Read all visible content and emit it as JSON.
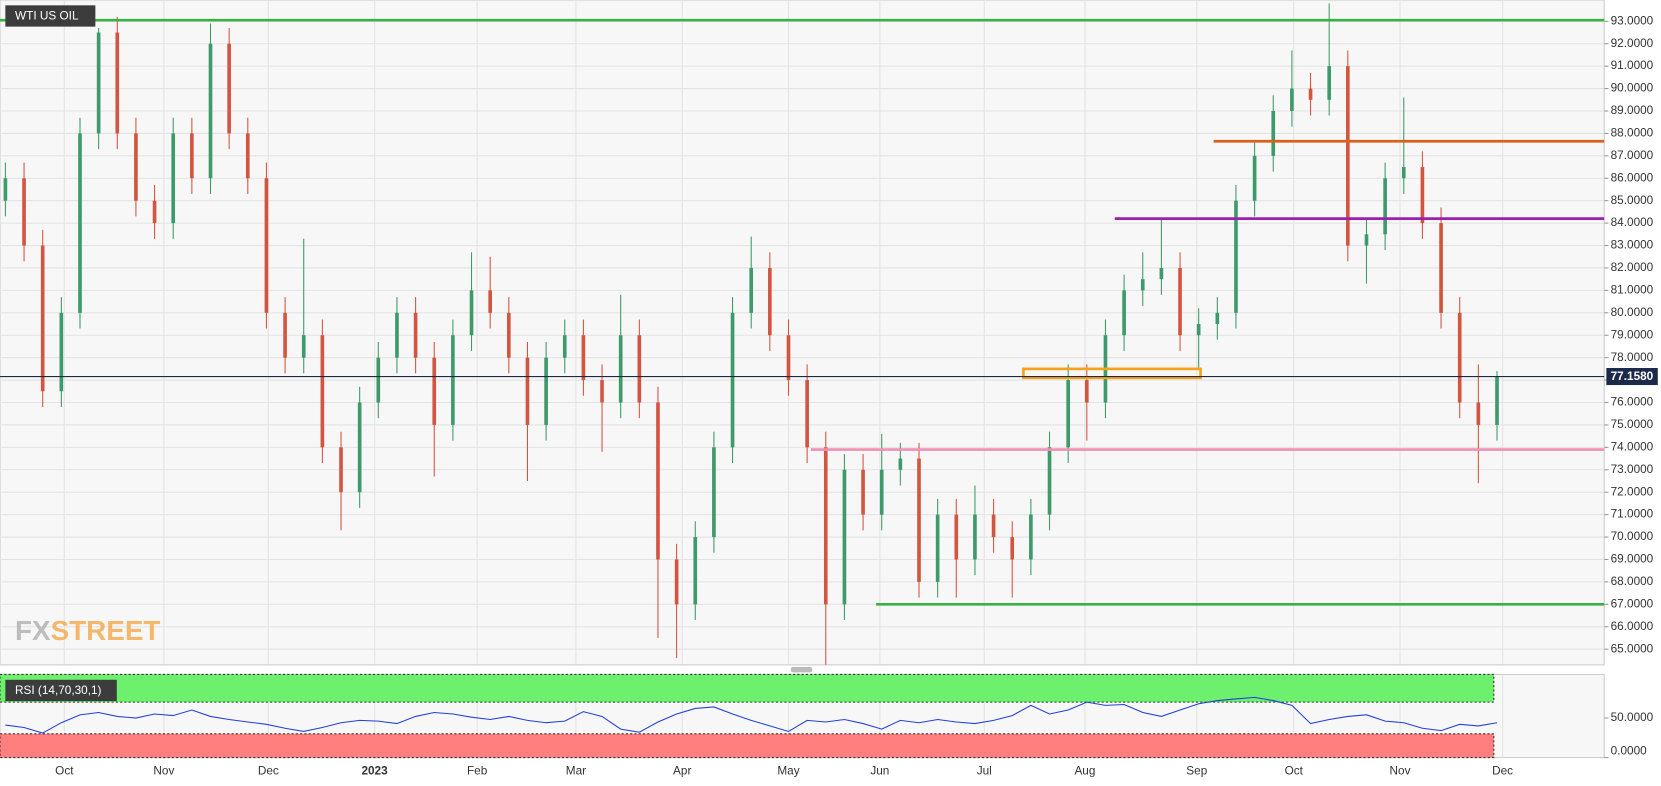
{
  "chart_data": {
    "type": "candlestick",
    "title": "WTI US OIL",
    "up_color": "#3d9a6b",
    "down_color": "#d2563f",
    "ohlc": [
      [
        85,
        86.7,
        84.3,
        86
      ],
      [
        86,
        86.7,
        82.3,
        83
      ],
      [
        83,
        83.7,
        75.8,
        76.5
      ],
      [
        76.5,
        80.7,
        75.8,
        80
      ],
      [
        80,
        88.7,
        79.3,
        88
      ],
      [
        88,
        92.7,
        87.3,
        92.5
      ],
      [
        92.5,
        93.2,
        87.3,
        88
      ],
      [
        88,
        88.7,
        84.3,
        85
      ],
      [
        85,
        85.7,
        83.3,
        84
      ],
      [
        84,
        88.7,
        83.3,
        88
      ],
      [
        88,
        88.7,
        85.3,
        86
      ],
      [
        86,
        92.9,
        85.3,
        92
      ],
      [
        92,
        92.7,
        87.3,
        88
      ],
      [
        88,
        88.7,
        85.3,
        86
      ],
      [
        86,
        86.7,
        79.3,
        80
      ],
      [
        80,
        80.7,
        77.3,
        78
      ],
      [
        78,
        83.3,
        77.3,
        79
      ],
      [
        79,
        79.7,
        73.3,
        74
      ],
      [
        74,
        74.7,
        70.3,
        72
      ],
      [
        72,
        76.7,
        71.3,
        76
      ],
      [
        76,
        78.7,
        75.3,
        78
      ],
      [
        78,
        80.7,
        77.3,
        80
      ],
      [
        80,
        80.7,
        77.3,
        78
      ],
      [
        78,
        78.7,
        72.7,
        75
      ],
      [
        75,
        79.7,
        74.3,
        79
      ],
      [
        79,
        82.7,
        78.3,
        81
      ],
      [
        81,
        82.5,
        79.3,
        80
      ],
      [
        80,
        80.7,
        77.3,
        78
      ],
      [
        78,
        78.7,
        72.5,
        75
      ],
      [
        75,
        78.7,
        74.3,
        78
      ],
      [
        78,
        79.7,
        77.3,
        79
      ],
      [
        79,
        79.7,
        76.3,
        77
      ],
      [
        77,
        77.7,
        73.8,
        76
      ],
      [
        76,
        80.8,
        75.3,
        79
      ],
      [
        79,
        79.7,
        75.3,
        76
      ],
      [
        76,
        76.7,
        65.5,
        69
      ],
      [
        69,
        69.7,
        64.6,
        67
      ],
      [
        67,
        70.7,
        66.3,
        70
      ],
      [
        70,
        74.7,
        69.3,
        74
      ],
      [
        74,
        80.7,
        73.3,
        80
      ],
      [
        80,
        83.4,
        79.3,
        82
      ],
      [
        82,
        82.7,
        78.3,
        79
      ],
      [
        79,
        79.7,
        76.3,
        77
      ],
      [
        77,
        77.7,
        73.3,
        74
      ],
      [
        74,
        74.7,
        64.3,
        67
      ],
      [
        67,
        73.7,
        66.3,
        73
      ],
      [
        73,
        73.7,
        70.3,
        71
      ],
      [
        71,
        74.6,
        70.3,
        73
      ],
      [
        73,
        74.2,
        72.3,
        73.5
      ],
      [
        73.5,
        74.2,
        67.3,
        68
      ],
      [
        68,
        71.7,
        67.3,
        71
      ],
      [
        71,
        71.7,
        67.3,
        69
      ],
      [
        69,
        72.3,
        68.3,
        71
      ],
      [
        71,
        71.7,
        69.3,
        70
      ],
      [
        70,
        70.7,
        67.3,
        69
      ],
      [
        69,
        71.7,
        68.3,
        71
      ],
      [
        71,
        74.7,
        70.3,
        74
      ],
      [
        74,
        77.7,
        73.3,
        77
      ],
      [
        77,
        77.7,
        74.3,
        76
      ],
      [
        76,
        79.7,
        75.3,
        79
      ],
      [
        79,
        81.7,
        78.3,
        81
      ],
      [
        81,
        82.7,
        80.3,
        81.5
      ],
      [
        81.5,
        84.2,
        80.8,
        82
      ],
      [
        82,
        82.7,
        78.3,
        79
      ],
      [
        79,
        80.2,
        77.5,
        79.5
      ],
      [
        79.5,
        80.7,
        78.8,
        80
      ],
      [
        80,
        85.7,
        79.3,
        85
      ],
      [
        85,
        87.7,
        84.3,
        87
      ],
      [
        87,
        89.7,
        86.3,
        89
      ],
      [
        89,
        91.7,
        88.3,
        90
      ],
      [
        90,
        90.7,
        88.8,
        89.5
      ],
      [
        89.5,
        93.8,
        88.8,
        91
      ],
      [
        91,
        91.7,
        82.3,
        83
      ],
      [
        83,
        84.2,
        81.3,
        83.5
      ],
      [
        83.5,
        86.7,
        82.8,
        86
      ],
      [
        86,
        89.6,
        85.3,
        86.5
      ],
      [
        86.5,
        87.2,
        83.3,
        84
      ],
      [
        84,
        84.7,
        79.3,
        80
      ],
      [
        80,
        80.7,
        75.3,
        76
      ],
      [
        76,
        77.7,
        72.4,
        75
      ],
      [
        75,
        77.4,
        74.3,
        77.158
      ]
    ],
    "ylim": [
      64.3,
      93.95
    ],
    "yticks": [
      {
        "value": 65,
        "label": "65.0000"
      },
      {
        "value": 66,
        "label": "66.0000"
      },
      {
        "value": 67,
        "label": "67.0000"
      },
      {
        "value": 68,
        "label": "68.0000"
      },
      {
        "value": 69,
        "label": "69.0000"
      },
      {
        "value": 70,
        "label": "70.0000"
      },
      {
        "value": 71,
        "label": "71.0000"
      },
      {
        "value": 72,
        "label": "72.0000"
      },
      {
        "value": 73,
        "label": "73.0000"
      },
      {
        "value": 74,
        "label": "74.0000"
      },
      {
        "value": 75,
        "label": "75.0000"
      },
      {
        "value": 76,
        "label": "76.0000"
      },
      {
        "value": 77,
        "label": "77.0000"
      },
      {
        "value": 78,
        "label": "78.0000"
      },
      {
        "value": 79,
        "label": "79.0000"
      },
      {
        "value": 80,
        "label": "80.0000"
      },
      {
        "value": 81,
        "label": "81.0000"
      },
      {
        "value": 82,
        "label": "82.0000"
      },
      {
        "value": 83,
        "label": "83.0000"
      },
      {
        "value": 84,
        "label": "84.0000"
      },
      {
        "value": 85,
        "label": "85.0000"
      },
      {
        "value": 86,
        "label": "86.0000"
      },
      {
        "value": 87,
        "label": "87.0000"
      },
      {
        "value": 88,
        "label": "88.0000"
      },
      {
        "value": 89,
        "label": "89.0000"
      },
      {
        "value": 90,
        "label": "90.0000"
      },
      {
        "value": 91,
        "label": "91.0000"
      },
      {
        "value": 92,
        "label": "92.0000"
      },
      {
        "value": 93,
        "label": "93.0000"
      }
    ],
    "xlim": [
      -0.29,
      85.75
    ],
    "xticks": [
      {
        "value": 3.16,
        "label": "Oct"
      },
      {
        "value": 8.5,
        "label": "Nov"
      },
      {
        "value": 14.1,
        "label": "Dec"
      },
      {
        "value": 19.8,
        "label": "2023"
      },
      {
        "value": 25.3,
        "label": "Feb"
      },
      {
        "value": 30.6,
        "label": "Mar"
      },
      {
        "value": 36.3,
        "label": "Apr"
      },
      {
        "value": 42,
        "label": "May"
      },
      {
        "value": 46.9,
        "label": "Jun"
      },
      {
        "value": 52.5,
        "label": "Jul"
      },
      {
        "value": 57.9,
        "label": "Aug"
      },
      {
        "value": 63.9,
        "label": "Sep"
      },
      {
        "value": 69.1,
        "label": "Oct"
      },
      {
        "value": 74.8,
        "label": "Nov"
      },
      {
        "value": 80.3,
        "label": "Dec"
      }
    ],
    "grid": true,
    "levels": [
      {
        "value": 93.05,
        "start": -0.29,
        "color": "#3cb043"
      },
      {
        "value": 87.65,
        "start": 64.8,
        "color": "#d9611c"
      },
      {
        "value": 84.2,
        "start": 59.5,
        "color": "#9b1fb0"
      },
      {
        "value": 73.9,
        "start": 43.2,
        "color": "#f08fb4"
      },
      {
        "value": 67,
        "start": 46.7,
        "color": "#3cb043"
      }
    ],
    "box": {
      "high": 77.5,
      "low": 77.1,
      "start": 54.6,
      "end": 64.1,
      "color": "#f7a21b"
    },
    "last_price": {
      "value": 77.158,
      "label": "77.1580",
      "color": "#1c2a4a"
    },
    "logo": [
      "FX",
      "STREET"
    ],
    "rsi": {
      "title": "RSI (14,70,30,1)",
      "color": "#2340d8",
      "overbought": 70,
      "oversold": 30,
      "ylim": [
        0,
        105
      ],
      "yticks": [
        {
          "value": 0,
          "label": "0.0000"
        },
        {
          "value": 50,
          "label": "50.0000"
        }
      ],
      "values": [
        41,
        38,
        31,
        44,
        54,
        57,
        52,
        50,
        55,
        53,
        60,
        52,
        48,
        45,
        42,
        37,
        33,
        38,
        44,
        47,
        46,
        43,
        52,
        57,
        55,
        51,
        48,
        52,
        47,
        44,
        46,
        58,
        52,
        36,
        32,
        45,
        55,
        62,
        64,
        55,
        47,
        40,
        33,
        47,
        45,
        48,
        43,
        36,
        47,
        44,
        48,
        45,
        43,
        47,
        53,
        66,
        55,
        60,
        70,
        66,
        67,
        57,
        52,
        60,
        68,
        72,
        74,
        76,
        72,
        66,
        43,
        48,
        52,
        54,
        46,
        44,
        37,
        34,
        42,
        40,
        44
      ]
    }
  }
}
